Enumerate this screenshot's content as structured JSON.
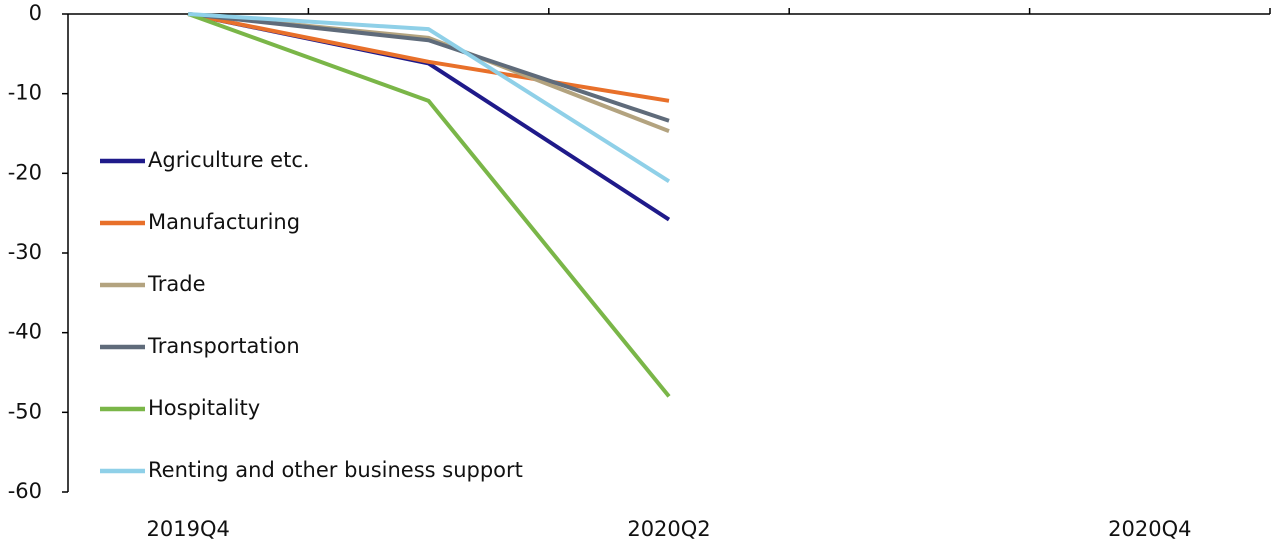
{
  "chart_data": {
    "type": "line",
    "categories": [
      "2019Q4",
      null,
      "2020Q2",
      null,
      "2020Q4"
    ],
    "series": [
      {
        "name": "Agriculture etc.",
        "color": "#1f1a8a",
        "values": [
          0,
          -6.2,
          -25.8,
          null,
          null
        ]
      },
      {
        "name": "Manufacturing",
        "color": "#e8702a",
        "values": [
          0,
          -6,
          -10.9,
          null,
          null
        ]
      },
      {
        "name": "Trade",
        "color": "#b3a37f",
        "values": [
          0,
          -3,
          -14.7,
          null,
          null
        ]
      },
      {
        "name": "Transportation",
        "color": "#5f6b7a",
        "values": [
          0,
          -3.3,
          -13.4,
          null,
          null
        ]
      },
      {
        "name": "Hospitality",
        "color": "#7ab648",
        "values": [
          0,
          -10.9,
          -48,
          null,
          null
        ]
      },
      {
        "name": "Renting and other business support",
        "color": "#8fd0e8",
        "values": [
          0,
          -1.9,
          -21,
          null,
          null
        ]
      }
    ],
    "ylim": [
      -60,
      0
    ],
    "yticks": [
      0,
      -10,
      -20,
      -30,
      -40,
      -50,
      -60
    ],
    "legend": "left"
  }
}
